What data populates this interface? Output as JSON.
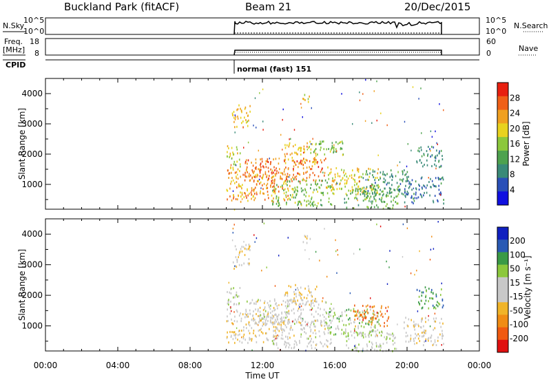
{
  "header": {
    "station": "Buckland Park (fitACF)",
    "beam": "Beam 21",
    "date": "20/Dec/2015"
  },
  "top_panels": {
    "nsky_label": "N.Sky",
    "nsky_ticks": [
      "10^5",
      "10^0"
    ],
    "nsearch_ticks": [
      "10^5",
      "10^0"
    ],
    "nsearch_label": "N.Search",
    "freq_label_1": "Freq.",
    "freq_label_2": "[MHz]",
    "freq_ticks": [
      "18",
      "8"
    ],
    "nave_ticks": [
      "60",
      "0"
    ],
    "nave_label": "Nave",
    "cpid_label": "CPID",
    "cpid_value": "normal (fast) 151"
  },
  "chart_data": [
    {
      "type": "heatmap",
      "panel": "power",
      "xlabel": "Time UT",
      "ylabel": "Slant Range [km]",
      "x_ticks": [
        "00:00",
        "04:00",
        "08:00",
        "12:00",
        "16:00",
        "20:00",
        "00:00"
      ],
      "x_range_hours": [
        0,
        24
      ],
      "y_ticks": [
        "1000",
        "2000",
        "3000",
        "4000"
      ],
      "y_range_km": [
        180,
        4500
      ],
      "data_time_range_hours": [
        10.0,
        22.0
      ],
      "colorbar": {
        "label": "Power [dB]",
        "ticks": [
          "28",
          "24",
          "20",
          "16",
          "12",
          "8",
          "4"
        ],
        "range": [
          0,
          30
        ],
        "colors": [
          "#1010e0",
          "#2a50b8",
          "#3a8a78",
          "#4ea24e",
          "#8cc83c",
          "#e8d21e",
          "#f0a020",
          "#f06018",
          "#e82010"
        ]
      },
      "echo_regions": [
        {
          "t0": 10.0,
          "t1": 13.5,
          "r0": 450,
          "r1": 1500,
          "value": 22
        },
        {
          "t0": 10.0,
          "t1": 10.8,
          "r0": 1500,
          "r1": 2300,
          "value": 18
        },
        {
          "t0": 11.0,
          "t1": 15.5,
          "r0": 1100,
          "r1": 1900,
          "value": 24
        },
        {
          "t0": 12.5,
          "t1": 15.8,
          "r0": 300,
          "r1": 1200,
          "value": 14
        },
        {
          "t0": 13.2,
          "t1": 15.0,
          "r0": 1700,
          "r1": 2400,
          "value": 20
        },
        {
          "t0": 14.5,
          "t1": 16.5,
          "r0": 2000,
          "r1": 2500,
          "value": 14
        },
        {
          "t0": 15.5,
          "t1": 18.5,
          "r0": 700,
          "r1": 1600,
          "value": 18
        },
        {
          "t0": 16.5,
          "t1": 19.5,
          "r0": 200,
          "r1": 900,
          "value": 12
        },
        {
          "t0": 17.5,
          "t1": 20.0,
          "r0": 600,
          "r1": 1500,
          "value": 10
        },
        {
          "t0": 19.8,
          "t1": 22.0,
          "r0": 400,
          "r1": 1300,
          "value": 7
        },
        {
          "t0": 20.5,
          "t1": 22.0,
          "r0": 1600,
          "r1": 2300,
          "value": 8
        },
        {
          "t0": 14.2,
          "t1": 14.7,
          "r0": 3700,
          "r1": 4000,
          "value": 18
        },
        {
          "t0": 10.3,
          "t1": 11.3,
          "r0": 2900,
          "r1": 3700,
          "value": 20
        }
      ]
    },
    {
      "type": "heatmap",
      "panel": "velocity",
      "xlabel": "Time UT",
      "ylabel": "Slant Range [km]",
      "x_ticks": [
        "00:00",
        "04:00",
        "08:00",
        "12:00",
        "16:00",
        "20:00",
        "00:00"
      ],
      "x_range_hours": [
        0,
        24
      ],
      "y_ticks": [
        "1000",
        "2000",
        "3000",
        "4000"
      ],
      "y_range_km": [
        180,
        4500
      ],
      "data_time_range_hours": [
        10.0,
        22.0
      ],
      "colorbar": {
        "label": "Velocity [m s⁻¹]",
        "ticks": [
          "200",
          "100",
          "50",
          "15",
          "-15",
          "-50",
          "-100",
          "-200"
        ],
        "range": [
          -250,
          250
        ],
        "colors": [
          "#e01010",
          "#f05a10",
          "#f08c14",
          "#f0b428",
          "#c8c8c8",
          "#c8c8c8",
          "#8cc83c",
          "#3a9a46",
          "#2a5ab4",
          "#1020c0"
        ]
      },
      "echo_regions": [
        {
          "t0": 10.0,
          "t1": 13.5,
          "r0": 450,
          "r1": 1500,
          "value": -30
        },
        {
          "t0": 10.0,
          "t1": 10.8,
          "r0": 1500,
          "r1": 2300,
          "value": 20
        },
        {
          "t0": 11.0,
          "t1": 15.5,
          "r0": 1100,
          "r1": 1900,
          "value": 0
        },
        {
          "t0": 12.5,
          "t1": 15.8,
          "r0": 300,
          "r1": 1200,
          "value": -5
        },
        {
          "t0": 13.2,
          "t1": 15.0,
          "r0": 1700,
          "r1": 2400,
          "value": -40
        },
        {
          "t0": 15.5,
          "t1": 18.5,
          "r0": 700,
          "r1": 1600,
          "value": 60
        },
        {
          "t0": 17.0,
          "t1": 19.0,
          "r0": 1000,
          "r1": 1700,
          "value": -150
        },
        {
          "t0": 16.5,
          "t1": 19.5,
          "r0": 200,
          "r1": 900,
          "value": 30
        },
        {
          "t0": 19.8,
          "t1": 22.0,
          "r0": 400,
          "r1": 1300,
          "value": -10
        },
        {
          "t0": 20.5,
          "t1": 22.0,
          "r0": 1600,
          "r1": 2300,
          "value": 120
        },
        {
          "t0": 14.2,
          "t1": 14.7,
          "r0": 3700,
          "r1": 4000,
          "value": -30
        },
        {
          "t0": 10.3,
          "t1": 11.3,
          "r0": 2900,
          "r1": 3700,
          "value": -40
        }
      ]
    }
  ]
}
